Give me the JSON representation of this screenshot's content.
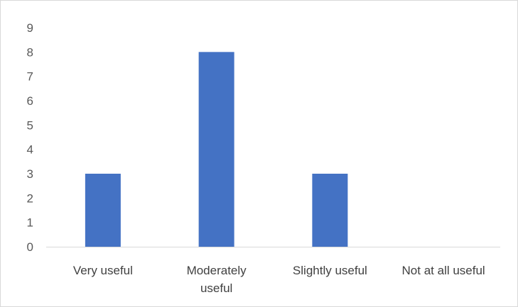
{
  "chart_data": {
    "type": "bar",
    "categories": [
      "Very useful",
      "Moderately useful",
      "Slightly useful",
      "Not at all useful"
    ],
    "category_label_lines": [
      [
        "Very useful"
      ],
      [
        "Moderately",
        "useful"
      ],
      [
        "Slightly useful"
      ],
      [
        "Not at all useful"
      ]
    ],
    "values": [
      3,
      8,
      3,
      0
    ],
    "title": "",
    "xlabel": "",
    "ylabel": "",
    "ylim": [
      0,
      9
    ],
    "yticks": [
      0,
      1,
      2,
      3,
      4,
      5,
      6,
      7,
      8,
      9
    ],
    "grid": false,
    "legend": "none",
    "bar_color": "#4472C4",
    "axis_color": "#d9d9d9"
  }
}
